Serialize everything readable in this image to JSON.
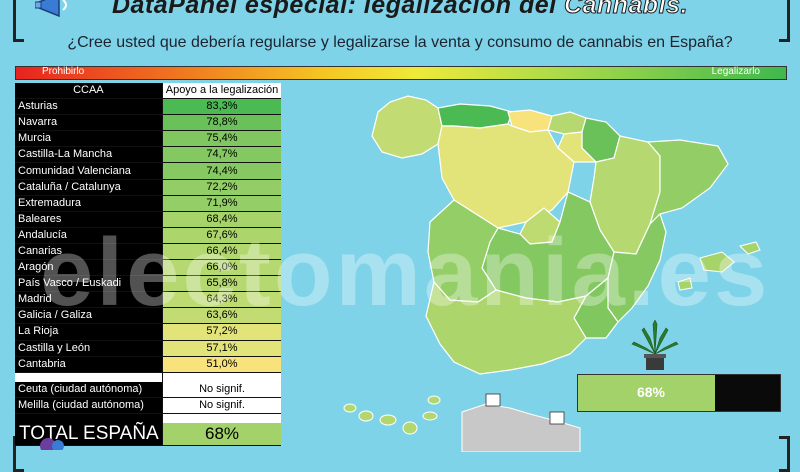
{
  "header": {
    "title_prefix": "DataPanel especial: legalización del",
    "title_highlight": "Cannabis.",
    "subtitle": "¿Cree usted que debería regularse y legalizarse la venta y consumo de cannabis en España?"
  },
  "scale": {
    "left_label": "Prohibirlo",
    "right_label": "Legalizarlo"
  },
  "watermark": "electomania.es",
  "colors": {
    "background": "#7fd3e8",
    "highest": "#3fb84e",
    "lowest": "#f5e37a"
  },
  "chart_data": {
    "type": "table",
    "columns": [
      "CCAA",
      "Apoyo a la legalización"
    ],
    "rows": [
      {
        "region": "Asturias",
        "value_label": "83,3%",
        "value": 83.3,
        "color": "#4cba53"
      },
      {
        "region": "Navarra",
        "value_label": "78,8%",
        "value": 78.8,
        "color": "#6ac15a"
      },
      {
        "region": "Murcia",
        "value_label": "75,4%",
        "value": 75.4,
        "color": "#80c760"
      },
      {
        "region": "Castilla-La Mancha",
        "value_label": "74,7%",
        "value": 74.7,
        "color": "#84c861"
      },
      {
        "region": "Comunidad Valenciana",
        "value_label": "74,4%",
        "value": 74.4,
        "color": "#86c962"
      },
      {
        "region": "Cataluña / Catalunya",
        "value_label": "72,2%",
        "value": 72.2,
        "color": "#92cd66"
      },
      {
        "region": "Extremadura",
        "value_label": "71,9%",
        "value": 71.9,
        "color": "#94ce67"
      },
      {
        "region": "Baleares",
        "value_label": "68,4%",
        "value": 68.4,
        "color": "#a7d36b"
      },
      {
        "region": "Andalucía",
        "value_label": "67,6%",
        "value": 67.6,
        "color": "#acd56c"
      },
      {
        "region": "Canarias",
        "value_label": "66,4%",
        "value": 66.4,
        "color": "#b2d76e"
      },
      {
        "region": "Aragón",
        "value_label": "66,0%",
        "value": 66.0,
        "color": "#b5d870"
      },
      {
        "region": "País Vasco / Euskadi",
        "value_label": "65,8%",
        "value": 65.8,
        "color": "#b6d870"
      },
      {
        "region": "Madrid",
        "value_label": "64,3%",
        "value": 64.3,
        "color": "#bedb72"
      },
      {
        "region": "Galicia / Galiza",
        "value_label": "63,6%",
        "value": 63.6,
        "color": "#c2dc73"
      },
      {
        "region": "La Rioja",
        "value_label": "57,2%",
        "value": 57.2,
        "color": "#e2e47a"
      },
      {
        "region": "Castilla y León",
        "value_label": "57,1%",
        "value": 57.1,
        "color": "#e2e47a"
      },
      {
        "region": "Cantabria",
        "value_label": "51,0%",
        "value": 51.0,
        "color": "#f7e27b"
      },
      {
        "region": "Ceuta (ciudad autónoma)",
        "value_label": "No signif.",
        "value": null,
        "color": "#ffffff"
      },
      {
        "region": "Melilla (ciudad autónoma)",
        "value_label": "No signif.",
        "value": null,
        "color": "#ffffff"
      }
    ],
    "total": {
      "label": "TOTAL ESPAÑA",
      "value_label": "68%",
      "value": 68,
      "color": "#a3d26a"
    }
  }
}
